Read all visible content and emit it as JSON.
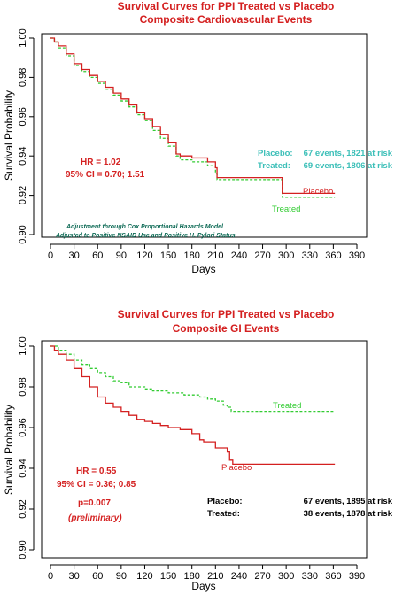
{
  "chart_data": [
    {
      "type": "line",
      "title": "Survival Curves for PPI Treated vs Placebo",
      "subtitle": "Composite Cardiovascular Events",
      "xlabel": "Days",
      "ylabel": "Survival Probability",
      "xlim": [
        0,
        390
      ],
      "ylim": [
        0.9,
        1.0
      ],
      "xticks": [
        "0",
        "30",
        "60",
        "90",
        "120",
        "150",
        "180",
        "210",
        "240",
        "270",
        "300",
        "330",
        "360",
        "390"
      ],
      "yticks": [
        "0.90",
        "0.92",
        "0.94",
        "0.96",
        "0.98",
        "1.00"
      ],
      "series": [
        {
          "name": "Placebo",
          "color": "#d42020",
          "style": "solid",
          "x": [
            0,
            5,
            10,
            20,
            30,
            40,
            50,
            60,
            70,
            80,
            90,
            100,
            110,
            120,
            130,
            140,
            150,
            160,
            165,
            180,
            200,
            210,
            212,
            292,
            295,
            362
          ],
          "y": [
            1.0,
            0.998,
            0.996,
            0.992,
            0.987,
            0.984,
            0.981,
            0.978,
            0.975,
            0.972,
            0.969,
            0.966,
            0.962,
            0.959,
            0.955,
            0.951,
            0.947,
            0.941,
            0.94,
            0.939,
            0.937,
            0.934,
            0.929,
            0.929,
            0.921,
            0.921
          ]
        },
        {
          "name": "Treated",
          "color": "#33cc33",
          "style": "dashed",
          "x": [
            0,
            5,
            10,
            20,
            30,
            40,
            50,
            60,
            70,
            80,
            90,
            100,
            110,
            120,
            130,
            140,
            150,
            160,
            165,
            180,
            200,
            210,
            212,
            292,
            295,
            362
          ],
          "y": [
            1.0,
            0.998,
            0.995,
            0.991,
            0.986,
            0.983,
            0.98,
            0.977,
            0.974,
            0.971,
            0.968,
            0.965,
            0.961,
            0.958,
            0.953,
            0.949,
            0.945,
            0.94,
            0.938,
            0.937,
            0.935,
            0.931,
            0.928,
            0.928,
            0.919,
            0.919
          ]
        }
      ],
      "curve_labels": [
        "Placebo",
        "Treated"
      ],
      "hr_text": "HR = 1.02",
      "ci_text": "95% CI = 0.70; 1.51",
      "events": [
        {
          "label": "Placebo:",
          "value": "67 events, 1821 at risk"
        },
        {
          "label": "Treated:",
          "value": "69 events, 1806 at risk"
        }
      ],
      "note_lines": [
        "Adjustment through Cox Proportional Hazards Model",
        "Adjusted to Positive NSAID Use and  Positive H. Pylori Status"
      ],
      "colors": {
        "title": "#d42020",
        "hr": "#d42020",
        "events": "#3cbfb8",
        "note": "#0d6a55"
      }
    },
    {
      "type": "line",
      "title": "Survival Curves for PPI Treated vs Placebo",
      "subtitle": "Composite GI Events",
      "xlabel": "Days",
      "ylabel": "Survival Probability",
      "xlim": [
        0,
        390
      ],
      "ylim": [
        0.9,
        1.0
      ],
      "xticks": [
        "0",
        "30",
        "60",
        "90",
        "120",
        "150",
        "180",
        "210",
        "240",
        "270",
        "300",
        "330",
        "360",
        "390"
      ],
      "yticks": [
        "0.90",
        "0.92",
        "0.94",
        "0.96",
        "0.98",
        "1.00"
      ],
      "series": [
        {
          "name": "Placebo",
          "color": "#d42020",
          "style": "solid",
          "x": [
            0,
            5,
            10,
            20,
            30,
            40,
            50,
            60,
            70,
            80,
            90,
            100,
            110,
            120,
            130,
            140,
            150,
            165,
            180,
            190,
            195,
            210,
            225,
            228,
            232,
            300,
            362
          ],
          "y": [
            1.0,
            0.998,
            0.996,
            0.993,
            0.989,
            0.985,
            0.98,
            0.975,
            0.972,
            0.97,
            0.968,
            0.966,
            0.964,
            0.963,
            0.962,
            0.961,
            0.96,
            0.959,
            0.957,
            0.954,
            0.953,
            0.95,
            0.948,
            0.944,
            0.942,
            0.942,
            0.942
          ]
        },
        {
          "name": "Treated",
          "color": "#33cc33",
          "style": "dashed",
          "x": [
            0,
            10,
            20,
            30,
            40,
            50,
            60,
            70,
            80,
            90,
            100,
            110,
            120,
            130,
            150,
            170,
            190,
            200,
            210,
            220,
            225,
            230,
            250,
            300,
            362
          ],
          "y": [
            1.0,
            0.998,
            0.996,
            0.993,
            0.991,
            0.989,
            0.987,
            0.985,
            0.983,
            0.982,
            0.98,
            0.98,
            0.979,
            0.978,
            0.977,
            0.976,
            0.975,
            0.974,
            0.973,
            0.971,
            0.97,
            0.968,
            0.968,
            0.968,
            0.968
          ]
        }
      ],
      "curve_labels": [
        "Placebo",
        "Treated"
      ],
      "hr_text": "HR = 0.55",
      "ci_text": "95% CI = 0.36; 0.85",
      "p_text": "p=0.007",
      "prelim_text": "(preliminary)",
      "events": [
        {
          "label": "Placebo:",
          "value": "67 events, 1895 at risk"
        },
        {
          "label": "Treated:",
          "value": "38 events, 1878 at risk"
        }
      ],
      "colors": {
        "title": "#d42020",
        "hr": "#d42020",
        "events": "#000000"
      }
    }
  ]
}
